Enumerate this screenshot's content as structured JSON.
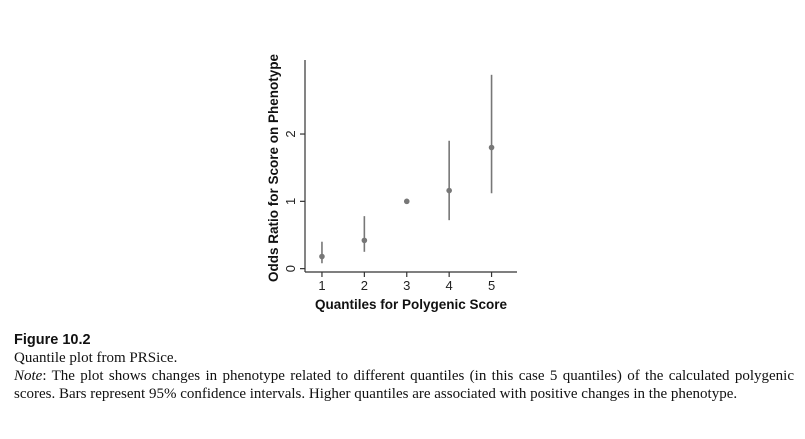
{
  "figure": {
    "label": "Figure 10.2",
    "title": "Quantile plot from PRSice.",
    "note_label": "Note",
    "note_text": ": The plot shows changes in phenotype related to different quantiles (in this case 5 quantiles) of the calculated polygenic scores. Bars represent 95% confidence intervals. Higher quantiles are associated with positive changes in the phenotype."
  },
  "chart_data": {
    "type": "scatter",
    "xlabel": "Quantiles for Polygenic Score",
    "ylabel": "Odds Ratio for Score on Phenotype",
    "x": [
      1,
      2,
      3,
      4,
      5
    ],
    "y": [
      0.18,
      0.42,
      1.0,
      1.16,
      1.8
    ],
    "ci_lower": [
      0.08,
      0.25,
      1.0,
      0.72,
      1.12
    ],
    "ci_upper": [
      0.4,
      0.78,
      1.0,
      1.9,
      2.88
    ],
    "x_ticks": [
      "1",
      "2",
      "3",
      "4",
      "5"
    ],
    "y_ticks": [
      "0",
      "1",
      "2"
    ],
    "xlim": [
      0.6,
      5.6
    ],
    "ylim": [
      -0.05,
      3.1
    ],
    "grid": false,
    "legend": "none",
    "colors": {
      "points": "#777777",
      "axis": "#333333"
    }
  }
}
